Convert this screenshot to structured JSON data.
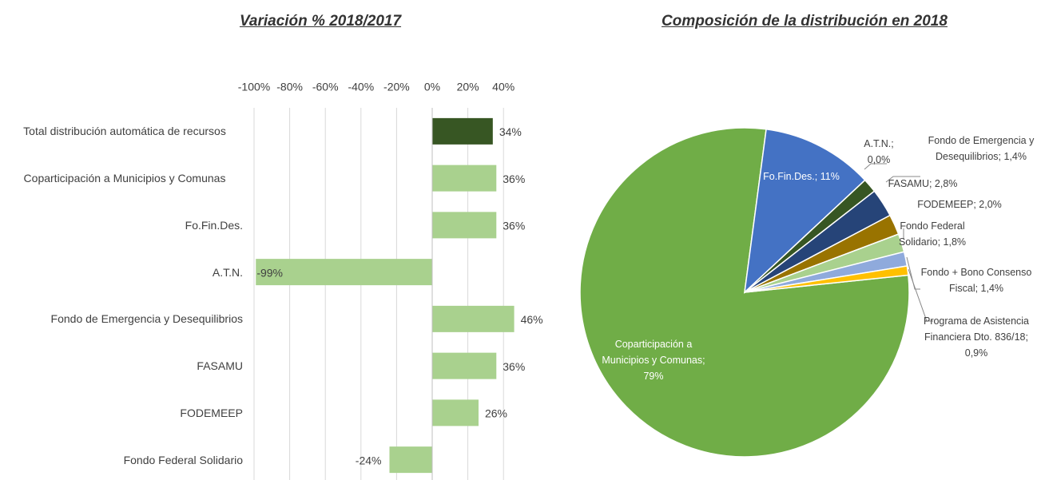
{
  "chart_data": [
    {
      "type": "hbar",
      "title": "Variación % 2018/2017",
      "categories": [
        "Total distribución automática de recursos",
        "Coparticipación a Municipios y Comunas",
        "Fo.Fin.Des.",
        "A.T.N.",
        "Fondo de Emergencia y Desequilibrios",
        "FASAMU",
        "FODEMEEP",
        "Fondo Federal Solidario"
      ],
      "values": [
        34,
        36,
        36,
        -99,
        46,
        36,
        26,
        -24
      ],
      "value_labels": [
        "34%",
        "36%",
        "36%",
        "-99%",
        "46%",
        "36%",
        "26%",
        "-24%"
      ],
      "colors": [
        "#375623",
        "#a9d18e",
        "#a9d18e",
        "#a9d18e",
        "#a9d18e",
        "#a9d18e",
        "#a9d18e",
        "#a9d18e"
      ],
      "xlim": [
        -100,
        50
      ],
      "xticks": [
        {
          "value": -100,
          "label": "-100%"
        },
        {
          "value": -80,
          "label": "-80%"
        },
        {
          "value": -60,
          "label": "-60%"
        },
        {
          "value": -40,
          "label": "-40%"
        },
        {
          "value": -20,
          "label": "-20%"
        },
        {
          "value": 0,
          "label": "0%"
        },
        {
          "value": 20,
          "label": "20%"
        },
        {
          "value": 40,
          "label": "40%"
        }
      ],
      "grid": true
    },
    {
      "type": "pie",
      "title": "Composición de la distribución en 2018",
      "values": [
        79,
        11,
        0.0,
        1.4,
        2.8,
        2.0,
        1.8,
        1.4,
        0.9
      ],
      "value_labels": [
        "Coparticipación a Municipios y Comunas; 79%",
        "Fo.Fin.Des.; 11%",
        "A.T.N.; 0,0%",
        "Fondo de Emergencia y Desequilibrios; 1,4%",
        "FASAMU; 2,8%",
        "FODEMEEP; 2,0%",
        "Fondo Federal Solidario; 1,8%",
        "Fondo + Bono Consenso Fiscal; 1,4%",
        "Programa de Asistencia Financiera Dto. 836/18; 0,9%"
      ],
      "colors": [
        "#70ad47",
        "#4472c4",
        "#a5a5a5",
        "#375623",
        "#264478",
        "#997300",
        "#a9d18e",
        "#8faadc",
        "#ffc000"
      ]
    }
  ]
}
